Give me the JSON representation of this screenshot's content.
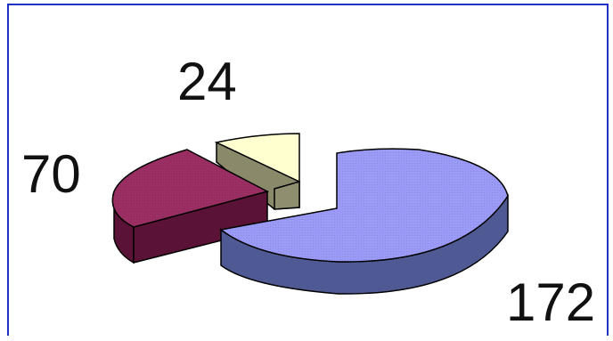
{
  "chart_data": {
    "type": "pie",
    "style": "3d-exploded",
    "slices": [
      {
        "label": "172",
        "value": 172,
        "color": "#9b9bf7",
        "side_color": "#4f5a94"
      },
      {
        "label": "70",
        "value": 70,
        "color": "#9b2f63",
        "side_color": "#5a1236"
      },
      {
        "label": "24",
        "value": 24,
        "color": "#ffffd0",
        "side_color": "#8a8a6a"
      }
    ],
    "legend": false
  }
}
